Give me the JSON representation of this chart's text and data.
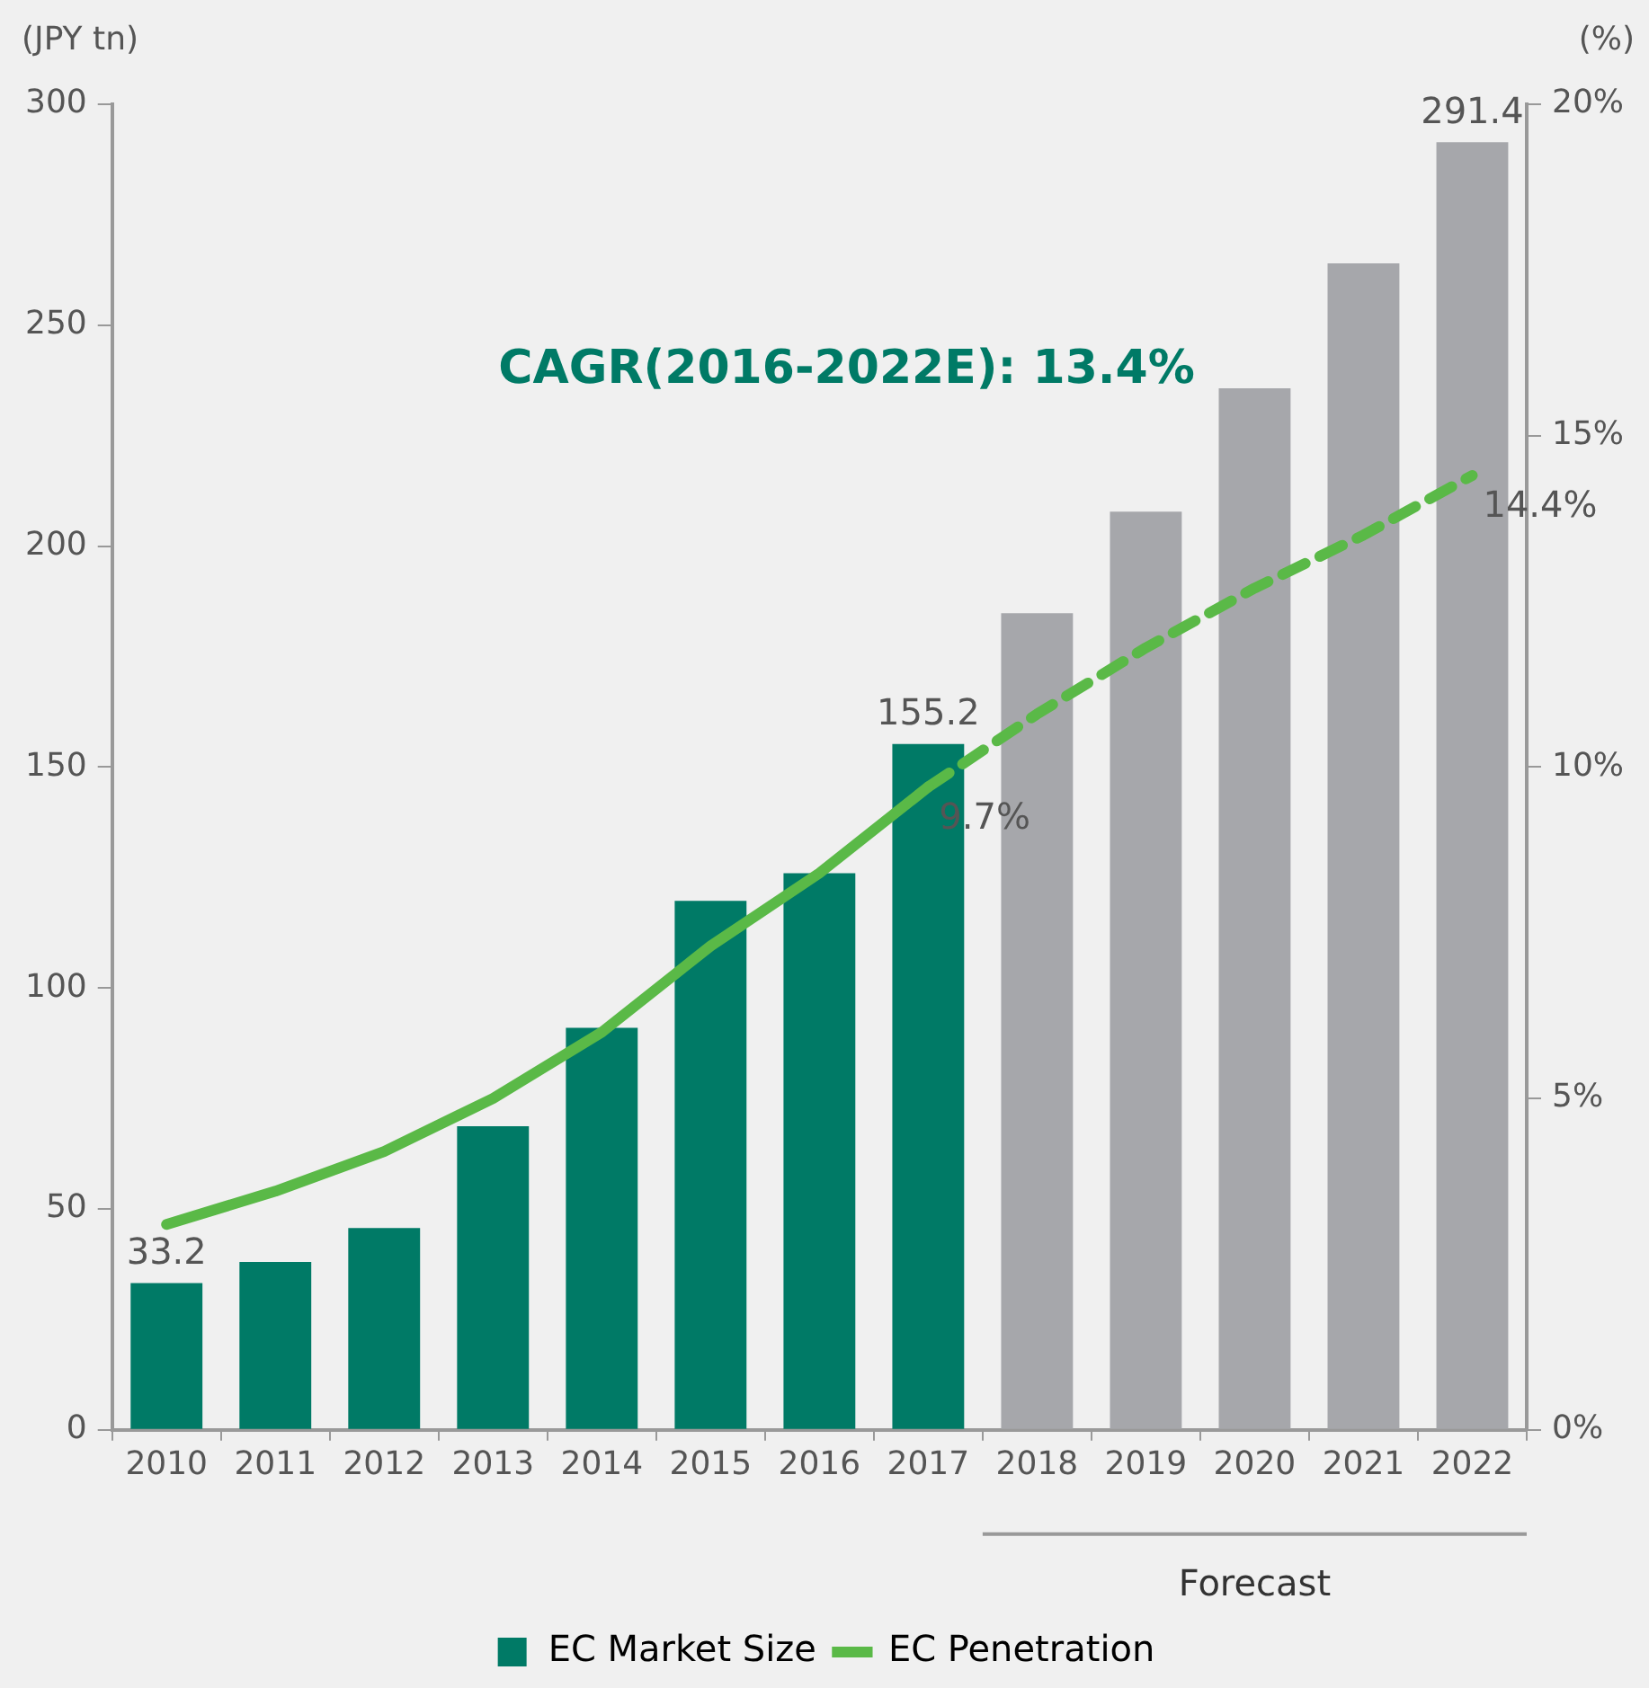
{
  "chart_data": {
    "type": "bar",
    "ylabel": "(JPY tn)",
    "y2label": "(%)",
    "categories": [
      "2010",
      "2011",
      "2012",
      "2013",
      "2014",
      "2015",
      "2016",
      "2017",
      "2018",
      "2019",
      "2020",
      "2021",
      "2022"
    ],
    "series": [
      {
        "name": "EC Market Size",
        "colors": [
          "#007a66",
          "#007a66",
          "#007a66",
          "#007a66",
          "#007a66",
          "#007a66",
          "#007a66",
          "#007a66",
          "#a6a7ab",
          "#a6a7ab",
          "#a6a7ab",
          "#a6a7ab",
          "#a6a7ab"
        ],
        "values": [
          33.2,
          38.0,
          45.7,
          68.7,
          91.0,
          119.7,
          126.0,
          155.2,
          184.8,
          207.8,
          235.7,
          264.0,
          291.4
        ],
        "value_labels": [
          "33.2",
          null,
          null,
          null,
          null,
          null,
          null,
          "155.2",
          null,
          null,
          null,
          null,
          "291.4"
        ]
      },
      {
        "name": "EC Penetration",
        "type": "line",
        "axis": "y2",
        "color": "#5ab947",
        "line_style": "solid",
        "values": [
          3.1,
          3.6,
          4.2,
          5.0,
          6.0,
          7.3,
          8.4,
          9.7,
          null,
          null,
          null,
          null,
          null
        ],
        "value_labels": [
          null,
          null,
          null,
          null,
          null,
          null,
          null,
          "9.7%",
          null,
          null,
          null,
          null,
          null
        ]
      },
      {
        "type": "line",
        "axis": "y2",
        "color": "#5ab947",
        "line_style": "dashed",
        "values": [
          null,
          null,
          null,
          null,
          null,
          null,
          null,
          9.7,
          10.8,
          11.8,
          12.7,
          13.5,
          14.4
        ],
        "value_labels": [
          null,
          null,
          null,
          null,
          null,
          null,
          null,
          null,
          null,
          null,
          null,
          null,
          "14.4%"
        ]
      }
    ],
    "ylim": [
      0,
      300
    ],
    "yticks": [
      0,
      50,
      100,
      150,
      200,
      250,
      300
    ],
    "y2lim": [
      0,
      20
    ],
    "y2ticks": [
      {
        "value": 0,
        "label": "0%"
      },
      {
        "value": 5,
        "label": "5%"
      },
      {
        "value": 10,
        "label": "10%"
      },
      {
        "value": 15,
        "label": "15%"
      },
      {
        "value": 20,
        "label": "20%"
      }
    ],
    "legend": "bottom",
    "annotations": [
      "CAGR(2016-2022E): 13.4%",
      "Forecast"
    ]
  }
}
